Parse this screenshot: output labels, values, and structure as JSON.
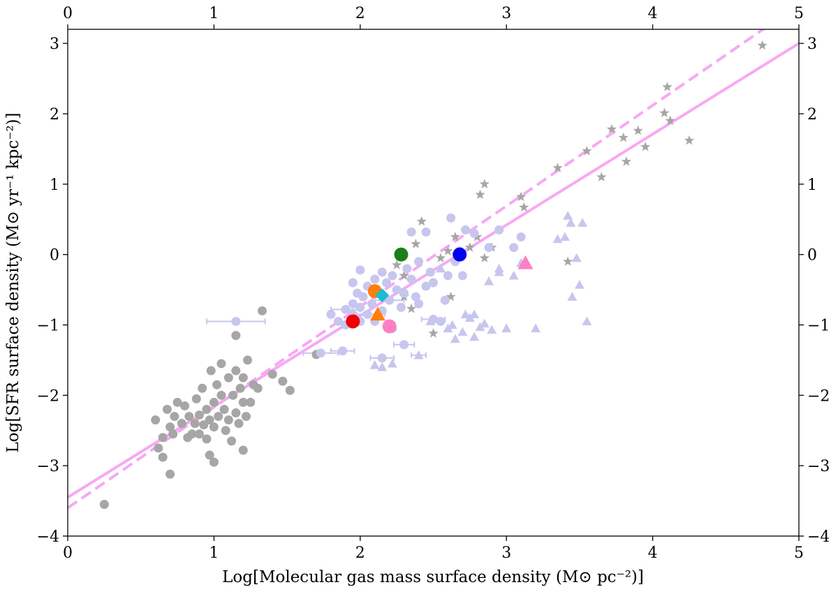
{
  "chart_data": {
    "type": "scatter",
    "xlabel": "Log[Molecular gas mass surface density (M⊙ pc⁻²)]",
    "ylabel": "Log[SFR surface density (M⊙ yr⁻¹ kpc⁻²)]",
    "xlim": [
      0,
      5
    ],
    "ylim": [
      -4,
      3.2
    ],
    "x_ticks": [
      "0",
      "1",
      "2",
      "3",
      "4",
      "5"
    ],
    "y_ticks": [
      "−4",
      "−3",
      "−2",
      "−1",
      "0",
      "1",
      "2",
      "3"
    ],
    "x_tick_values": [
      0,
      1,
      2,
      3,
      4,
      5
    ],
    "y_tick_values": [
      -4,
      -3,
      -2,
      -1,
      0,
      1,
      2,
      3
    ],
    "mirror_axes": "top-right",
    "grid": false,
    "lines": [
      {
        "style": "solid",
        "color": "#f7a8f4",
        "slope": 1.29,
        "intercept": -3.45
      },
      {
        "style": "dashed",
        "color": "#f7a8f4",
        "slope": 1.43,
        "intercept": -3.6
      }
    ],
    "series": [
      {
        "marker": "circle",
        "color": "#a6a6a6",
        "points": [
          [
            0.25,
            -3.55
          ],
          [
            0.6,
            -2.35
          ],
          [
            0.62,
            -2.75
          ],
          [
            0.65,
            -2.88
          ],
          [
            0.65,
            -2.6
          ],
          [
            0.68,
            -2.2
          ],
          [
            0.7,
            -2.45
          ],
          [
            0.7,
            -3.12
          ],
          [
            0.72,
            -2.55
          ],
          [
            0.73,
            -2.3
          ],
          [
            0.75,
            -2.1
          ],
          [
            0.78,
            -2.4
          ],
          [
            0.8,
            -2.15
          ],
          [
            0.82,
            -2.6
          ],
          [
            0.83,
            -2.3
          ],
          [
            0.85,
            -2.55
          ],
          [
            0.87,
            -2.4
          ],
          [
            0.88,
            -2.05
          ],
          [
            0.9,
            -2.28
          ],
          [
            0.9,
            -2.55
          ],
          [
            0.92,
            -1.9
          ],
          [
            0.93,
            -2.42
          ],
          [
            0.95,
            -2.2
          ],
          [
            0.95,
            -2.62
          ],
          [
            0.97,
            -2.35
          ],
          [
            0.97,
            -2.85
          ],
          [
            0.98,
            -1.65
          ],
          [
            1.0,
            -2.1
          ],
          [
            1.0,
            -2.45
          ],
          [
            1.0,
            -2.95
          ],
          [
            1.02,
            -1.85
          ],
          [
            1.03,
            -2.3
          ],
          [
            1.05,
            -2.0
          ],
          [
            1.05,
            -1.55
          ],
          [
            1.07,
            -2.2
          ],
          [
            1.08,
            -2.5
          ],
          [
            1.1,
            -1.75
          ],
          [
            1.1,
            -2.35
          ],
          [
            1.12,
            -2.65
          ],
          [
            1.13,
            -2.0
          ],
          [
            1.15,
            -1.65
          ],
          [
            1.15,
            -2.25
          ],
          [
            1.15,
            -1.15
          ],
          [
            1.17,
            -2.4
          ],
          [
            1.18,
            -1.9
          ],
          [
            1.2,
            -2.1
          ],
          [
            1.2,
            -1.75
          ],
          [
            1.22,
            -2.3
          ],
          [
            1.23,
            -1.5
          ],
          [
            1.25,
            -2.1
          ],
          [
            1.27,
            -1.85
          ],
          [
            1.3,
            -1.9
          ],
          [
            1.33,
            -0.8
          ],
          [
            1.4,
            -1.7
          ],
          [
            1.47,
            -1.8
          ],
          [
            1.52,
            -1.93
          ],
          [
            1.7,
            -1.42
          ],
          [
            1.2,
            -2.78
          ]
        ]
      },
      {
        "marker": "star",
        "color": "#a6a6a6",
        "points": [
          [
            2.25,
            -0.15
          ],
          [
            2.3,
            -0.6
          ],
          [
            2.3,
            -0.3
          ],
          [
            2.35,
            -0.77
          ],
          [
            2.38,
            0.15
          ],
          [
            2.42,
            0.47
          ],
          [
            2.5,
            -1.12
          ],
          [
            2.55,
            -0.05
          ],
          [
            2.6,
            0.05
          ],
          [
            2.62,
            -0.6
          ],
          [
            2.65,
            0.25
          ],
          [
            2.75,
            0.1
          ],
          [
            2.8,
            0.25
          ],
          [
            2.82,
            0.85
          ],
          [
            2.85,
            -0.05
          ],
          [
            2.85,
            1.0
          ],
          [
            2.9,
            0.1
          ],
          [
            3.1,
            0.82
          ],
          [
            3.12,
            0.67
          ],
          [
            3.35,
            1.23
          ],
          [
            3.42,
            -0.1
          ],
          [
            3.55,
            1.47
          ],
          [
            3.65,
            1.1
          ],
          [
            3.72,
            1.78
          ],
          [
            3.8,
            1.66
          ],
          [
            3.82,
            1.32
          ],
          [
            3.9,
            1.76
          ],
          [
            3.95,
            1.53
          ],
          [
            4.08,
            2.01
          ],
          [
            4.1,
            2.38
          ],
          [
            4.12,
            1.9
          ],
          [
            4.25,
            1.62
          ],
          [
            4.75,
            2.97
          ]
        ]
      },
      {
        "marker": "circle",
        "color": "#c6c6ee",
        "points": [
          [
            1.8,
            -0.85
          ],
          [
            1.85,
            -0.95
          ],
          [
            1.9,
            -0.78
          ],
          [
            1.9,
            -1.0
          ],
          [
            1.95,
            -0.7
          ],
          [
            1.95,
            -0.85
          ],
          [
            1.98,
            -0.55
          ],
          [
            2.0,
            -0.75
          ],
          [
            2.0,
            -0.95
          ],
          [
            2.02,
            -0.6
          ],
          [
            2.05,
            -0.45
          ],
          [
            2.05,
            -0.85
          ],
          [
            2.08,
            -0.7
          ],
          [
            2.1,
            -0.35
          ],
          [
            2.1,
            -0.95
          ],
          [
            2.12,
            -0.55
          ],
          [
            2.15,
            -0.8
          ],
          [
            2.18,
            -0.4
          ],
          [
            2.2,
            -0.65
          ],
          [
            2.22,
            -0.3
          ],
          [
            2.25,
            -0.5
          ],
          [
            2.28,
            -0.75
          ],
          [
            2.3,
            -0.55
          ],
          [
            2.32,
            -0.2
          ],
          [
            2.35,
            -0.35
          ],
          [
            2.38,
            -0.6
          ],
          [
            2.4,
            -0.1
          ],
          [
            2.45,
            -0.45
          ],
          [
            2.48,
            -0.25
          ],
          [
            2.5,
            -0.4
          ],
          [
            2.55,
            -0.95
          ],
          [
            2.58,
            -0.65
          ],
          [
            2.6,
            -0.3
          ],
          [
            2.62,
            0.52
          ],
          [
            2.65,
            -0.1
          ],
          [
            2.68,
            0.05
          ],
          [
            2.7,
            -0.3
          ],
          [
            2.72,
            0.35
          ],
          [
            2.78,
            0.3
          ],
          [
            2.88,
            0.1
          ],
          [
            2.95,
            0.35
          ],
          [
            3.05,
            0.1
          ],
          [
            3.1,
            0.25
          ],
          [
            2.35,
            0.32
          ],
          [
            2.45,
            0.32
          ],
          [
            2.0,
            -0.22
          ],
          [
            1.15,
            -0.95
          ],
          [
            1.73,
            -1.4
          ],
          [
            2.15,
            -1.47
          ],
          [
            2.5,
            -0.92
          ],
          [
            1.88,
            -1.37
          ],
          [
            2.3,
            -1.28
          ],
          [
            2.22,
            -1.05
          ],
          [
            2.4,
            -0.7
          ],
          [
            1.95,
            -0.4
          ],
          [
            2.15,
            -0.25
          ]
        ]
      },
      {
        "marker": "triangle",
        "color": "#c6c6ee",
        "points": [
          [
            2.1,
            -1.57
          ],
          [
            2.15,
            -1.6
          ],
          [
            2.22,
            -1.55
          ],
          [
            2.4,
            -1.43
          ],
          [
            2.48,
            -0.95
          ],
          [
            2.55,
            -0.2
          ],
          [
            2.6,
            -1.05
          ],
          [
            2.63,
            -1.0
          ],
          [
            2.65,
            -1.2
          ],
          [
            2.7,
            -1.1
          ],
          [
            2.72,
            -0.85
          ],
          [
            2.75,
            -0.9
          ],
          [
            2.78,
            -0.85
          ],
          [
            2.78,
            -1.17
          ],
          [
            2.82,
            -1.03
          ],
          [
            2.85,
            -0.98
          ],
          [
            2.88,
            -0.38
          ],
          [
            2.9,
            -1.07
          ],
          [
            2.95,
            -0.25
          ],
          [
            2.95,
            -0.2
          ],
          [
            3.0,
            -1.05
          ],
          [
            3.05,
            -0.3
          ],
          [
            3.1,
            -0.12
          ],
          [
            3.2,
            -1.05
          ],
          [
            3.35,
            0.22
          ],
          [
            3.4,
            0.25
          ],
          [
            3.42,
            0.55
          ],
          [
            3.44,
            0.45
          ],
          [
            3.45,
            -0.6
          ],
          [
            3.48,
            -0.05
          ],
          [
            3.5,
            -0.43
          ],
          [
            3.52,
            0.45
          ],
          [
            3.55,
            -0.95
          ]
        ]
      },
      {
        "marker": "circle-large",
        "color": "#ee0000",
        "points": [
          [
            1.95,
            -0.95
          ]
        ]
      },
      {
        "marker": "circle-large",
        "color": "#ff7f0e",
        "points": [
          [
            2.1,
            -0.52
          ]
        ]
      },
      {
        "marker": "diamond-large",
        "color": "#17becf",
        "points": [
          [
            2.15,
            -0.58
          ]
        ]
      },
      {
        "marker": "circle-large",
        "color": "#1a7f1a",
        "points": [
          [
            2.28,
            0.0
          ]
        ]
      },
      {
        "marker": "circle-large",
        "color": "#0000ee",
        "points": [
          [
            2.68,
            0.0
          ]
        ]
      },
      {
        "marker": "circle-large",
        "color": "#ff7fc4",
        "points": [
          [
            2.2,
            -1.02
          ]
        ]
      },
      {
        "marker": "triangle-large",
        "color": "#ff7f0e",
        "points": [
          [
            2.12,
            -0.85
          ]
        ]
      },
      {
        "marker": "triangle-large",
        "color": "#ff7fc4",
        "points": [
          [
            3.13,
            -0.12
          ]
        ]
      }
    ],
    "error_bars": [
      {
        "x": 1.15,
        "y": -0.95,
        "xerr": [
          0.2,
          0.2
        ],
        "color": "#c6c6ee"
      },
      {
        "x": 1.73,
        "y": -1.4,
        "xerr": [
          0.12,
          0.12
        ],
        "color": "#c6c6ee"
      },
      {
        "x": 1.88,
        "y": -1.37,
        "xerr": [
          0.08,
          0.08
        ],
        "color": "#c6c6ee"
      },
      {
        "x": 2.15,
        "y": -1.47,
        "xerr": [
          0.08,
          0.08
        ],
        "color": "#c6c6ee"
      },
      {
        "x": 2.3,
        "y": -1.28,
        "xerr": [
          0.07,
          0.07
        ],
        "color": "#c6c6ee"
      },
      {
        "x": 2.5,
        "y": -0.92,
        "xerr": [
          0.08,
          0.08
        ],
        "color": "#c6c6ee"
      },
      {
        "x": 1.9,
        "y": -0.78,
        "xerr": [
          0.1,
          0.1
        ],
        "color": "#c6c6ee"
      },
      {
        "x": 2.05,
        "y": -0.85,
        "xerr": [
          0.12,
          0.12
        ],
        "color": "#c6c6ee"
      },
      {
        "x": 2.2,
        "y": -0.65,
        "xerr": [
          0.1,
          0.1
        ],
        "color": "#c6c6ee"
      },
      {
        "x": 2.4,
        "y": -1.43,
        "xerr": [
          0.05,
          0.05
        ],
        "color": "#c6c6ee"
      }
    ]
  }
}
